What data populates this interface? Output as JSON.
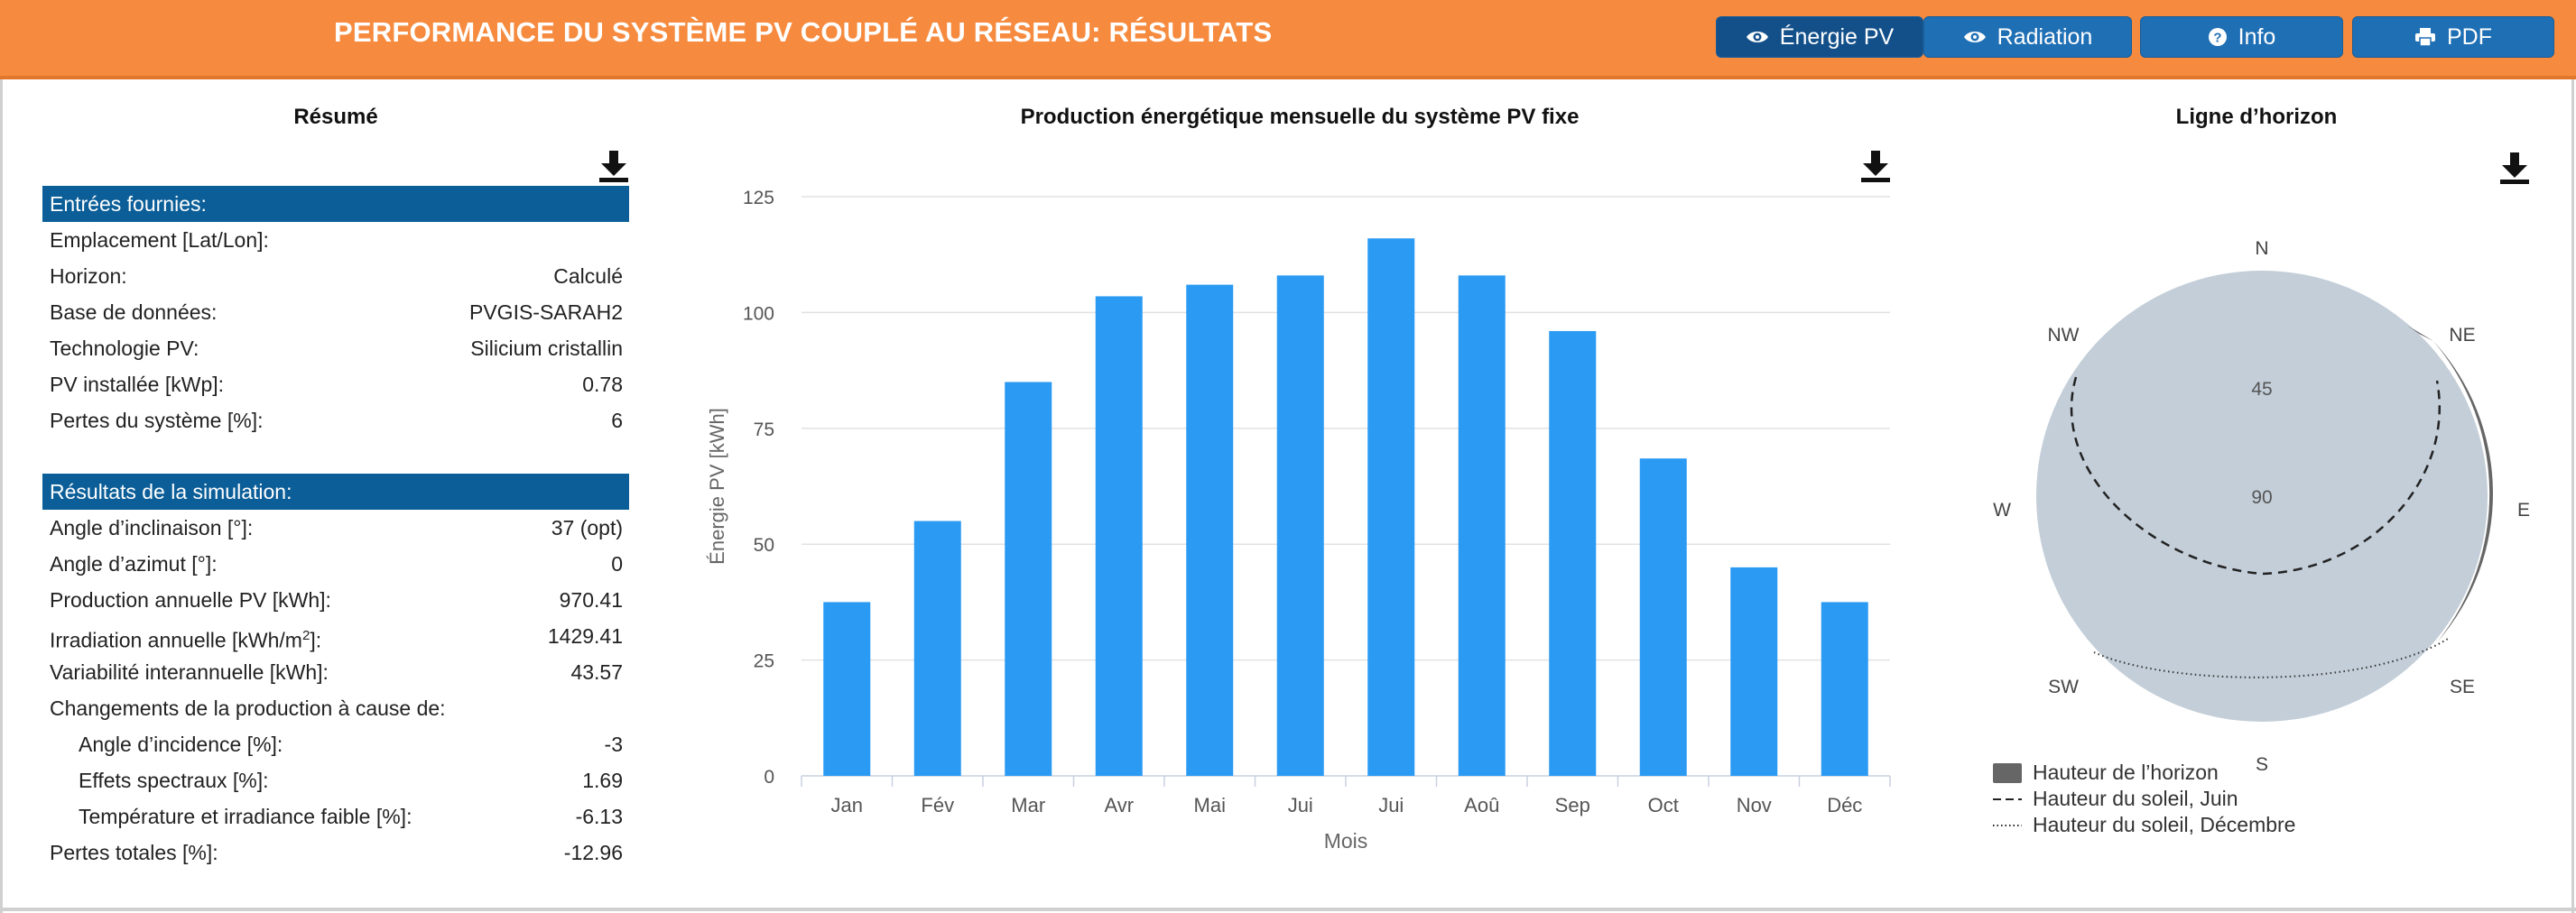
{
  "header": {
    "title": "PERFORMANCE DU SYSTÈME PV COUPLÉ AU RÉSEAU: RÉSULTATS",
    "buttons": [
      {
        "label": "Énergie PV",
        "icon": "eye-icon",
        "active": true
      },
      {
        "label": "Radiation",
        "icon": "eye-icon",
        "active": false
      },
      {
        "label": "Info",
        "icon": "question-circle-icon",
        "active": false
      },
      {
        "label": "PDF",
        "icon": "printer-icon",
        "active": false
      }
    ]
  },
  "summary": {
    "title": "Résumé",
    "inputs_header": "Entrées fournies:",
    "inputs": [
      {
        "label": "Emplacement [Lat/Lon]:",
        "value": ""
      },
      {
        "label": "Horizon:",
        "value": "Calculé"
      },
      {
        "label": "Base de données:",
        "value": "PVGIS-SARAH2"
      },
      {
        "label": "Technologie PV:",
        "value": "Silicium cristallin"
      },
      {
        "label": "PV installée [kWp]:",
        "value": "0.78"
      },
      {
        "label": "Pertes du système [%]:",
        "value": "6"
      }
    ],
    "results_header": "Résultats de la simulation:",
    "results": [
      {
        "label": "Angle d’inclinaison [°]:",
        "value": "37 (opt)"
      },
      {
        "label": "Angle d’azimut [°]:",
        "value": "0"
      },
      {
        "label": "Production annuelle PV [kWh]:",
        "value": "970.41"
      },
      {
        "label_pre": "Irradiation annuelle [kWh/m",
        "label_sup": "2",
        "label_post": "]:",
        "value": "1429.41"
      },
      {
        "label": "Variabilité interannuelle [kWh]:",
        "value": "43.57"
      },
      {
        "label": "Changements de la production à cause de:",
        "value": ""
      },
      {
        "label": "Angle d’incidence [%]:",
        "value": "-3",
        "indent": true
      },
      {
        "label": "Effets spectraux [%]:",
        "value": "1.69",
        "indent": true
      },
      {
        "label": "Température et irradiance faible [%]:",
        "value": "-6.13",
        "indent": true
      },
      {
        "label": "Pertes totales [%]:",
        "value": "-12.96"
      }
    ]
  },
  "chart_data": [
    {
      "type": "bar",
      "title": "Production énergétique mensuelle du système PV fixe",
      "xlabel": "Mois",
      "ylabel": "Énergie PV [kWh]",
      "categories": [
        "Jan",
        "Fév",
        "Mar",
        "Avr",
        "Mai",
        "Jui",
        "Jui",
        "Aoû",
        "Sep",
        "Oct",
        "Nov",
        "Déc"
      ],
      "values": [
        37.5,
        55,
        85,
        103.5,
        106,
        108,
        116,
        108,
        96,
        68.5,
        45,
        37.5
      ],
      "yticks": [
        0,
        25,
        50,
        75,
        100,
        125
      ],
      "ylim": [
        0,
        125
      ],
      "grid": true,
      "bar_color": "#2b9af3"
    },
    {
      "type": "polar",
      "title": "Ligne d’horizon",
      "directions": [
        "N",
        "NE",
        "E",
        "SE",
        "S",
        "SW",
        "W",
        "NW"
      ],
      "radial_labels": [
        "45",
        "90"
      ],
      "series": [
        {
          "name": "Hauteur de l’horizon",
          "style": "filled"
        },
        {
          "name": "Hauteur du soleil, Juin",
          "style": "dashed"
        },
        {
          "name": "Hauteur du soleil, Décembre",
          "style": "dotted"
        }
      ],
      "legend_position": "bottom-left"
    }
  ]
}
